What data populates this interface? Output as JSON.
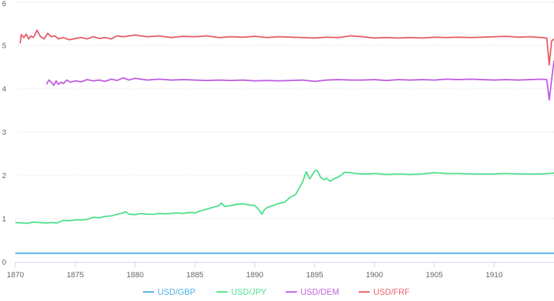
{
  "chart_data": {
    "type": "line",
    "title": "",
    "xlabel": "",
    "ylabel": "",
    "xlim": [
      1870,
      1915
    ],
    "ylim": [
      0,
      6
    ],
    "x_ticks": [
      "1870",
      "1875",
      "1880",
      "1885",
      "1890",
      "1895",
      "1900",
      "1905",
      "1910"
    ],
    "y_ticks": [
      "0",
      "1",
      "2",
      "3",
      "4",
      "5",
      "6"
    ],
    "grid": "horizontal dotted",
    "legend_position": "bottom",
    "series": [
      {
        "name": "USD/GBP",
        "color": "#4aaee8",
        "points": [
          [
            1870.0,
            0.2
          ],
          [
            1875,
            0.2
          ],
          [
            1880,
            0.2
          ],
          [
            1885,
            0.2
          ],
          [
            1890,
            0.2
          ],
          [
            1895,
            0.2
          ],
          [
            1900,
            0.2
          ],
          [
            1905,
            0.2
          ],
          [
            1910,
            0.2
          ],
          [
            1915,
            0.2
          ]
        ]
      },
      {
        "name": "USD/JPY",
        "color": "#4fe08e",
        "points": [
          [
            1870.0,
            0.91
          ],
          [
            1870.5,
            0.9
          ],
          [
            1871,
            0.89
          ],
          [
            1871.5,
            0.92
          ],
          [
            1872,
            0.91
          ],
          [
            1872.5,
            0.9
          ],
          [
            1873,
            0.91
          ],
          [
            1873.5,
            0.9
          ],
          [
            1874,
            0.96
          ],
          [
            1874.5,
            0.95
          ],
          [
            1875,
            0.97
          ],
          [
            1875.5,
            0.97
          ],
          [
            1876,
            0.98
          ],
          [
            1876.5,
            1.03
          ],
          [
            1877,
            1.02
          ],
          [
            1877.5,
            1.05
          ],
          [
            1878,
            1.06
          ],
          [
            1878.5,
            1.1
          ],
          [
            1879,
            1.13
          ],
          [
            1879.2,
            1.16
          ],
          [
            1879.5,
            1.1
          ],
          [
            1880,
            1.09
          ],
          [
            1880.5,
            1.12
          ],
          [
            1881,
            1.1
          ],
          [
            1881.5,
            1.1
          ],
          [
            1882,
            1.12
          ],
          [
            1882.5,
            1.11
          ],
          [
            1883,
            1.12
          ],
          [
            1883.5,
            1.13
          ],
          [
            1884,
            1.12
          ],
          [
            1884.5,
            1.14
          ],
          [
            1885,
            1.13
          ],
          [
            1885.5,
            1.18
          ],
          [
            1886,
            1.22
          ],
          [
            1886.5,
            1.26
          ],
          [
            1887,
            1.3
          ],
          [
            1887.2,
            1.36
          ],
          [
            1887.5,
            1.28
          ],
          [
            1888,
            1.3
          ],
          [
            1888.5,
            1.33
          ],
          [
            1889,
            1.34
          ],
          [
            1889.5,
            1.32
          ],
          [
            1890,
            1.3
          ],
          [
            1890.3,
            1.22
          ],
          [
            1890.6,
            1.1
          ],
          [
            1890.8,
            1.2
          ],
          [
            1891,
            1.25
          ],
          [
            1891.5,
            1.3
          ],
          [
            1892,
            1.35
          ],
          [
            1892.5,
            1.38
          ],
          [
            1893,
            1.5
          ],
          [
            1893.4,
            1.55
          ],
          [
            1893.7,
            1.7
          ],
          [
            1894,
            1.85
          ],
          [
            1894.3,
            2.08
          ],
          [
            1894.6,
            1.92
          ],
          [
            1895,
            2.1
          ],
          [
            1895.2,
            2.12
          ],
          [
            1895.5,
            1.95
          ],
          [
            1895.8,
            1.9
          ],
          [
            1896,
            1.93
          ],
          [
            1896.3,
            1.86
          ],
          [
            1896.6,
            1.92
          ],
          [
            1896.9,
            1.95
          ],
          [
            1897.2,
            2.0
          ],
          [
            1897.5,
            2.07
          ],
          [
            1898,
            2.06
          ],
          [
            1898.5,
            2.04
          ],
          [
            1899,
            2.03
          ],
          [
            1899.5,
            2.03
          ],
          [
            1900,
            2.04
          ],
          [
            1901,
            2.02
          ],
          [
            1902,
            2.03
          ],
          [
            1903,
            2.02
          ],
          [
            1904,
            2.03
          ],
          [
            1905,
            2.06
          ],
          [
            1906,
            2.04
          ],
          [
            1907,
            2.04
          ],
          [
            1908,
            2.03
          ],
          [
            1909,
            2.03
          ],
          [
            1910,
            2.03
          ],
          [
            1911,
            2.04
          ],
          [
            1912,
            2.03
          ],
          [
            1913,
            2.03
          ],
          [
            1914,
            2.03
          ],
          [
            1915,
            2.05
          ]
        ]
      },
      {
        "name": "USD/DEM",
        "color": "#c05fe0",
        "points": [
          [
            1872.6,
            4.1
          ],
          [
            1872.8,
            4.2
          ],
          [
            1873.0,
            4.15
          ],
          [
            1873.2,
            4.08
          ],
          [
            1873.4,
            4.18
          ],
          [
            1873.6,
            4.1
          ],
          [
            1873.8,
            4.15
          ],
          [
            1874,
            4.12
          ],
          [
            1874.3,
            4.2
          ],
          [
            1874.6,
            4.15
          ],
          [
            1875,
            4.18
          ],
          [
            1875.5,
            4.16
          ],
          [
            1876,
            4.21
          ],
          [
            1876.5,
            4.18
          ],
          [
            1877,
            4.2
          ],
          [
            1877.5,
            4.17
          ],
          [
            1878,
            4.22
          ],
          [
            1878.5,
            4.19
          ],
          [
            1879,
            4.25
          ],
          [
            1879.5,
            4.2
          ],
          [
            1880,
            4.24
          ],
          [
            1881,
            4.2
          ],
          [
            1882,
            4.22
          ],
          [
            1883,
            4.2
          ],
          [
            1884,
            4.21
          ],
          [
            1885,
            4.2
          ],
          [
            1886,
            4.19
          ],
          [
            1887,
            4.2
          ],
          [
            1888,
            4.19
          ],
          [
            1889,
            4.2
          ],
          [
            1890,
            4.18
          ],
          [
            1891,
            4.19
          ],
          [
            1892,
            4.18
          ],
          [
            1893,
            4.19
          ],
          [
            1894,
            4.2
          ],
          [
            1895,
            4.17
          ],
          [
            1896,
            4.2
          ],
          [
            1897,
            4.21
          ],
          [
            1898,
            4.2
          ],
          [
            1899,
            4.2
          ],
          [
            1900,
            4.21
          ],
          [
            1901,
            4.19
          ],
          [
            1902,
            4.21
          ],
          [
            1903,
            4.2
          ],
          [
            1904,
            4.21
          ],
          [
            1905,
            4.2
          ],
          [
            1906,
            4.22
          ],
          [
            1907,
            4.21
          ],
          [
            1908,
            4.22
          ],
          [
            1909,
            4.21
          ],
          [
            1910,
            4.2
          ],
          [
            1911,
            4.21
          ],
          [
            1912,
            4.2
          ],
          [
            1913,
            4.21
          ],
          [
            1914,
            4.22
          ],
          [
            1914.4,
            4.21
          ],
          [
            1914.6,
            3.74
          ],
          [
            1914.8,
            4.2
          ],
          [
            1915.0,
            4.65
          ]
        ]
      },
      {
        "name": "USD/FRF",
        "color": "#e75e6a",
        "points": [
          [
            1870.4,
            5.05
          ],
          [
            1870.5,
            5.25
          ],
          [
            1870.7,
            5.18
          ],
          [
            1870.9,
            5.26
          ],
          [
            1871.1,
            5.15
          ],
          [
            1871.3,
            5.22
          ],
          [
            1871.5,
            5.18
          ],
          [
            1871.8,
            5.35
          ],
          [
            1872.1,
            5.2
          ],
          [
            1872.4,
            5.15
          ],
          [
            1872.7,
            5.28
          ],
          [
            1873,
            5.2
          ],
          [
            1873.3,
            5.22
          ],
          [
            1873.6,
            5.15
          ],
          [
            1874,
            5.18
          ],
          [
            1874.5,
            5.13
          ],
          [
            1875,
            5.16
          ],
          [
            1875.5,
            5.18
          ],
          [
            1876,
            5.15
          ],
          [
            1876.5,
            5.2
          ],
          [
            1877,
            5.16
          ],
          [
            1877.5,
            5.18
          ],
          [
            1878,
            5.15
          ],
          [
            1878.5,
            5.22
          ],
          [
            1879,
            5.2
          ],
          [
            1880,
            5.24
          ],
          [
            1881,
            5.2
          ],
          [
            1882,
            5.22
          ],
          [
            1883,
            5.18
          ],
          [
            1884,
            5.21
          ],
          [
            1885,
            5.2
          ],
          [
            1886,
            5.22
          ],
          [
            1887,
            5.18
          ],
          [
            1888,
            5.2
          ],
          [
            1889,
            5.19
          ],
          [
            1890,
            5.21
          ],
          [
            1891,
            5.18
          ],
          [
            1892,
            5.2
          ],
          [
            1893,
            5.19
          ],
          [
            1894,
            5.18
          ],
          [
            1895,
            5.17
          ],
          [
            1896,
            5.19
          ],
          [
            1897,
            5.18
          ],
          [
            1898,
            5.22
          ],
          [
            1899,
            5.2
          ],
          [
            1900,
            5.17
          ],
          [
            1901,
            5.18
          ],
          [
            1902,
            5.17
          ],
          [
            1903,
            5.18
          ],
          [
            1904,
            5.17
          ],
          [
            1905,
            5.19
          ],
          [
            1906,
            5.18
          ],
          [
            1907,
            5.19
          ],
          [
            1908,
            5.18
          ],
          [
            1909,
            5.19
          ],
          [
            1910,
            5.2
          ],
          [
            1911,
            5.21
          ],
          [
            1912,
            5.19
          ],
          [
            1913,
            5.2
          ],
          [
            1914,
            5.18
          ],
          [
            1914.4,
            5.17
          ],
          [
            1914.6,
            4.55
          ],
          [
            1914.8,
            5.1
          ],
          [
            1915.0,
            5.15
          ]
        ]
      }
    ]
  }
}
